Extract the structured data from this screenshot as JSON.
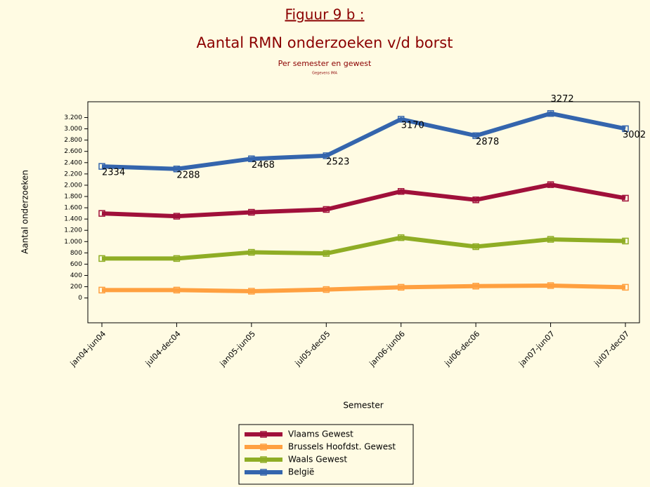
{
  "chart_data": {
    "type": "line",
    "title": "Figuur 9 b :",
    "subtitle": "Aantal RMN onderzoeken v/d borst",
    "caption": "Per semester en gewest",
    "source": "Gegevens IMA",
    "y_label": "Aantal onderzoeken",
    "x_label": "Semester",
    "categories": [
      "jan04-jun04",
      "jul04-dec04",
      "jan05-jun05",
      "jul05-dec05",
      "jan06-jun06",
      "jul06-dec06",
      "jan07-jun07",
      "jul07-dec07"
    ],
    "ylim": [
      -440,
      3480
    ],
    "yticks": [
      0,
      200,
      400,
      600,
      800,
      {
        "value": 1000,
        "label": "1.000"
      },
      {
        "value": 1200,
        "label": "1.200"
      },
      {
        "value": 1400,
        "label": "1.400"
      },
      {
        "value": 1600,
        "label": "1.600"
      },
      {
        "value": 1800,
        "label": "1.800"
      },
      {
        "value": 2000,
        "label": "2.000"
      },
      {
        "value": 2200,
        "label": "2.200"
      },
      {
        "value": 2400,
        "label": "2.400"
      },
      {
        "value": 2600,
        "label": "2.600"
      },
      {
        "value": 2800,
        "label": "2.800"
      },
      {
        "value": 3000,
        "label": "3.000"
      },
      {
        "value": 3200,
        "label": "3.200"
      }
    ],
    "series": [
      {
        "name": "Vlaams Gewest",
        "color": "#a0103a",
        "values": [
          1500,
          1450,
          1520,
          1570,
          1890,
          1740,
          2010,
          1770
        ]
      },
      {
        "name": "Brussels Hoofdst. Gewest",
        "color": "#ffa040",
        "values": [
          140,
          140,
          120,
          150,
          190,
          210,
          220,
          190
        ]
      },
      {
        "name": "Waals Gewest",
        "color": "#8fad25",
        "values": [
          700,
          700,
          810,
          790,
          1070,
          910,
          1040,
          1010
        ]
      },
      {
        "name": "België",
        "color": "#3465ad",
        "values": [
          2334,
          2288,
          2468,
          2523,
          3170,
          2878,
          3272,
          3002
        ],
        "show_labels": true
      }
    ]
  }
}
